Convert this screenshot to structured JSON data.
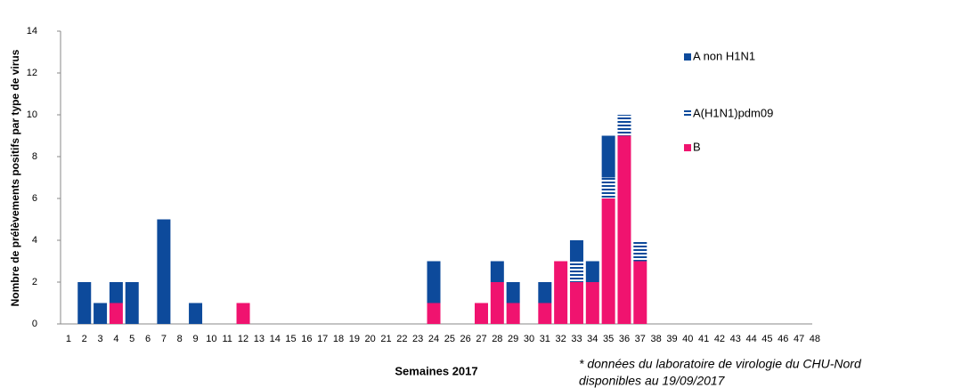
{
  "chart_data": {
    "type": "stacked-bar",
    "y_label": "Nombre de prélèvements positifs par type de virus",
    "x_label": "Semaines 2017",
    "note": [
      "* données du laboratoire de virologie du CHU-Nord",
      "disponibles au 19/09/2017"
    ],
    "categories": [
      "1",
      "2",
      "3",
      "4",
      "5",
      "6",
      "7",
      "8",
      "9",
      "10",
      "11",
      "12",
      "13",
      "14",
      "15",
      "16",
      "17",
      "18",
      "19",
      "20",
      "21",
      "22",
      "23",
      "24",
      "25",
      "26",
      "27",
      "28",
      "29",
      "30",
      "31",
      "32",
      "33",
      "34",
      "35",
      "36",
      "37",
      "38",
      "39",
      "40",
      "41",
      "42",
      "43",
      "44",
      "45",
      "46",
      "47",
      "48"
    ],
    "series": [
      {
        "name": "A non H1N1",
        "color": "#0d4a9b",
        "pattern": "solid",
        "values": [
          0,
          2,
          1,
          1,
          2,
          0,
          5,
          0,
          1,
          0,
          0,
          0,
          0,
          0,
          0,
          0,
          0,
          0,
          0,
          0,
          0,
          0,
          0,
          2,
          0,
          0,
          0,
          1,
          1,
          0,
          1,
          0,
          1,
          1,
          2,
          0,
          0,
          0,
          0,
          0,
          0,
          0,
          0,
          0,
          0,
          0,
          0,
          0
        ]
      },
      {
        "name": "A(H1N1)pdm09",
        "color": "#0d4a9b",
        "pattern": "striped",
        "values": [
          0,
          0,
          0,
          0,
          0,
          0,
          0,
          0,
          0,
          0,
          0,
          0,
          0,
          0,
          0,
          0,
          0,
          0,
          0,
          0,
          0,
          0,
          0,
          0,
          0,
          0,
          0,
          0,
          0,
          0,
          0,
          0,
          1,
          0,
          1,
          1,
          1,
          0,
          0,
          0,
          0,
          0,
          0,
          0,
          0,
          0,
          0,
          0
        ]
      },
      {
        "name": "B",
        "color": "#f0136f",
        "pattern": "solid",
        "values": [
          0,
          0,
          0,
          1,
          0,
          0,
          0,
          0,
          0,
          0,
          0,
          1,
          0,
          0,
          0,
          0,
          0,
          0,
          0,
          0,
          0,
          0,
          0,
          1,
          0,
          0,
          1,
          2,
          1,
          0,
          1,
          3,
          2,
          2,
          6,
          9,
          3,
          0,
          0,
          0,
          0,
          0,
          0,
          0,
          0,
          0,
          0,
          0
        ]
      }
    ],
    "ylim": [
      0,
      14
    ],
    "yticks": [
      0,
      2,
      4,
      6,
      8,
      10,
      12,
      14
    ],
    "legend": "upper right"
  }
}
